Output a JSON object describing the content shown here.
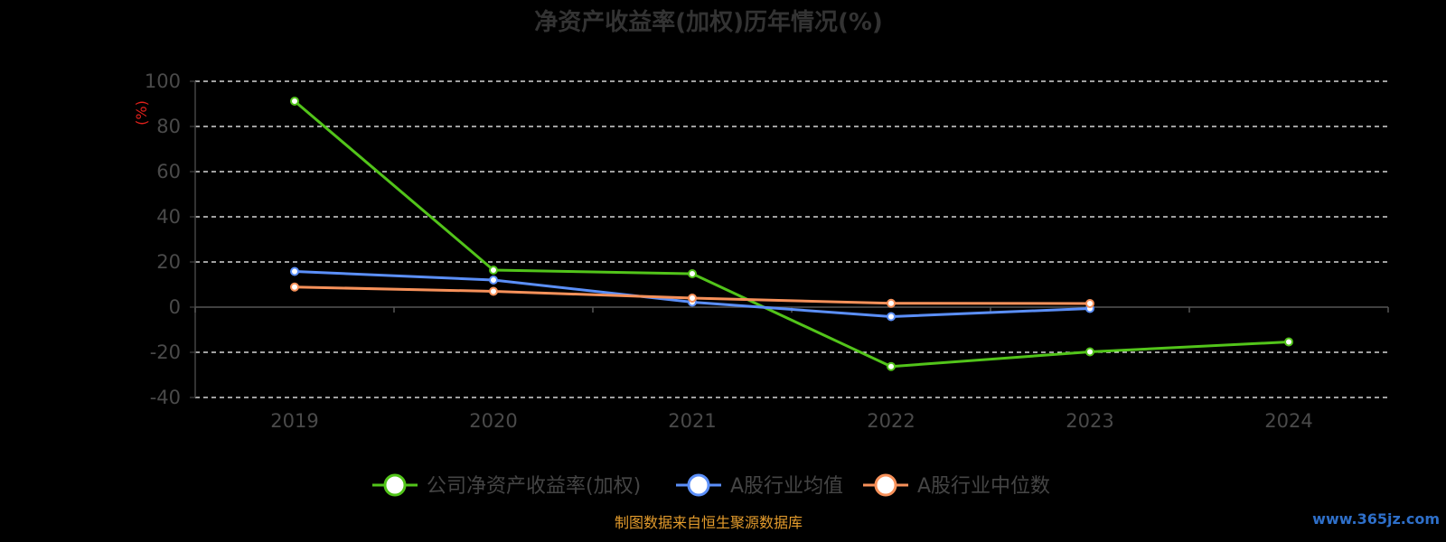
{
  "chart_data": {
    "type": "line",
    "title": "净资产收益率(加权)历年情况(%)",
    "xlabel": "",
    "ylabel": "(%)",
    "categories": [
      "2019",
      "2020",
      "2021",
      "2022",
      "2023",
      "2024"
    ],
    "ylim": [
      -40,
      100
    ],
    "yticks": [
      100,
      80,
      60,
      40,
      20,
      0,
      -20,
      -40
    ],
    "grid": true,
    "legend_position": "bottom",
    "series": [
      {
        "name": "公司净资产收益率(加权)",
        "color": "#52c41a",
        "values": [
          91.2,
          16.4,
          14.8,
          -26.3,
          -19.8,
          -15.4
        ]
      },
      {
        "name": "A股行业均值",
        "color": "#5b8ff9",
        "values": [
          15.8,
          12.0,
          2.2,
          -4.2,
          -0.6,
          null
        ]
      },
      {
        "name": "A股行业中位数",
        "color": "#f7915a",
        "values": [
          8.9,
          7.0,
          4.0,
          1.7,
          1.6,
          null
        ]
      }
    ]
  },
  "footer": {
    "source": "制图数据来自恒生聚源数据库",
    "watermark": "www.365jz.com"
  }
}
